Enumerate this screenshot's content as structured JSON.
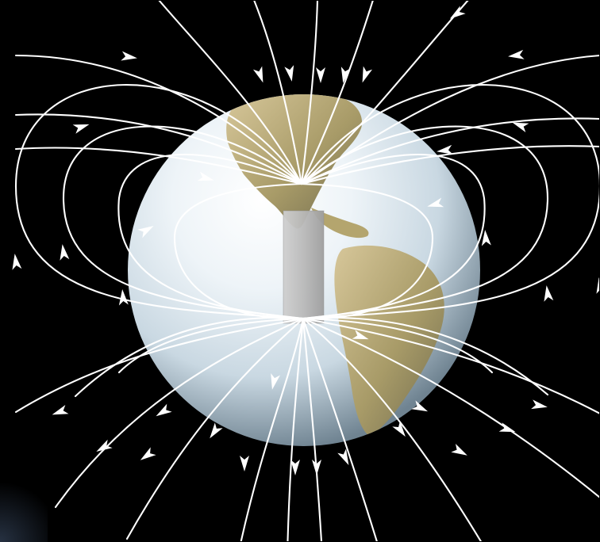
{
  "image": {
    "background": "#000000",
    "earth_ocean": "#dfe8ef",
    "earth_land": "#b6a873",
    "field_line_color": "#ffffff",
    "magnet_color": "#bcbcbc"
  },
  "elements": {
    "earth": "globe-icon",
    "magnet": "bar-magnet-icon",
    "field_lines": "magnetic-field-lines",
    "arrows": "arrowhead-icon"
  }
}
